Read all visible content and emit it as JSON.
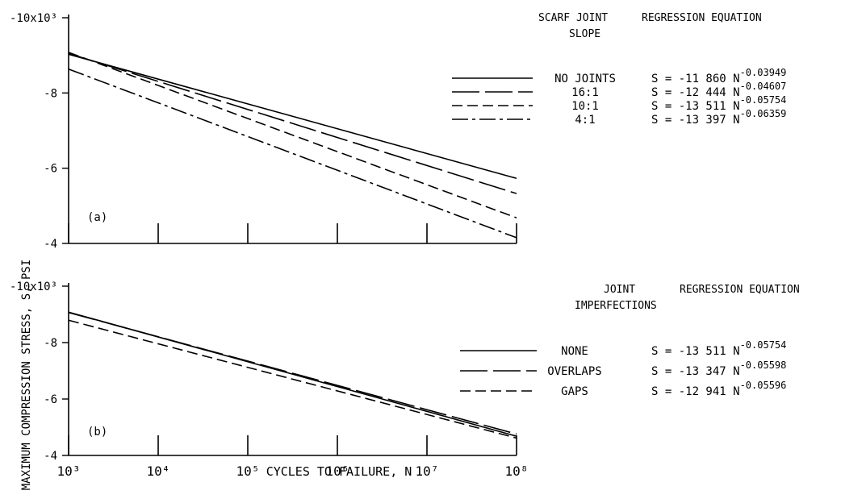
{
  "figure": {
    "ylabel": "MAXIMUM COMPRESSION STRESS, S, PSI",
    "xlabel": "CYCLES TO FAILURE, N"
  },
  "chart_data": [
    {
      "type": "line",
      "panel_label": "(a)",
      "xscale": "log",
      "xlim": [
        1000,
        100000000
      ],
      "ylim": [
        -4000,
        -10000
      ],
      "y_tick_labels": [
        "-10x10³",
        "-8",
        "-6",
        "-4"
      ],
      "x_tick_labels": [],
      "legend_header_1": "SCARF JOINT\nSLOPE",
      "legend_header_2": "REGRESSION EQUATION",
      "series": [
        {
          "name": "NO JOINTS",
          "dash": "solid",
          "equation": "S = -11 860 N",
          "exponent": "-0.03949",
          "coef": -11860,
          "exp": -0.03949
        },
        {
          "name": "16:1",
          "dash": "long-dash",
          "equation": "S = -12 444 N",
          "exponent": "-0.04607",
          "coef": -12444,
          "exp": -0.04607
        },
        {
          "name": "10:1",
          "dash": "dash",
          "equation": "S = -13 511 N",
          "exponent": "-0.05754",
          "coef": -13511,
          "exp": -0.05754
        },
        {
          "name": "4:1",
          "dash": "dash-dot",
          "equation": "S = -13 397 N",
          "exponent": "-0.06359",
          "coef": -13397,
          "exp": -0.06359
        }
      ]
    },
    {
      "type": "line",
      "panel_label": "(b)",
      "xscale": "log",
      "xlim": [
        1000,
        100000000
      ],
      "ylim": [
        -4000,
        -10000
      ],
      "y_tick_labels": [
        "-10x10³",
        "-8",
        "-6",
        "-4"
      ],
      "x_tick_labels": [
        "10³",
        "10⁴",
        "10⁵",
        "10⁶",
        "10⁷",
        "10⁸"
      ],
      "legend_header_1": "JOINT\nIMPERFECTIONS",
      "legend_header_2": "REGRESSION EQUATION",
      "series": [
        {
          "name": "NONE",
          "dash": "solid",
          "equation": "S = -13 511 N",
          "exponent": "-0.05754",
          "coef": -13511,
          "exp": -0.05754
        },
        {
          "name": "OVERLAPS",
          "dash": "long-dash",
          "equation": "S = -13 347 N",
          "exponent": "-0.05598",
          "coef": -13347,
          "exp": -0.05598
        },
        {
          "name": "GAPS",
          "dash": "dash",
          "equation": "S = -12 941 N",
          "exponent": "-0.05596",
          "coef": -12941,
          "exp": -0.05596
        }
      ]
    }
  ]
}
